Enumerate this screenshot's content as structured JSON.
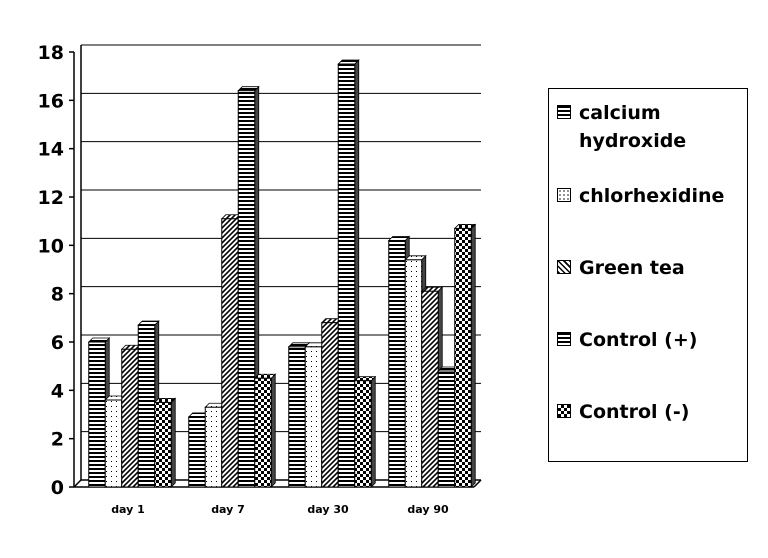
{
  "chart_data": {
    "type": "bar",
    "categories": [
      "day 1",
      "day 7",
      "day 30",
      "day 90"
    ],
    "series": [
      {
        "name": "calcium hydroxide",
        "pattern": "hstripe",
        "values": [
          6.0,
          2.9,
          5.8,
          10.2
        ]
      },
      {
        "name": "chlorhexidine",
        "pattern": "dots",
        "values": [
          3.6,
          3.3,
          5.8,
          9.4
        ]
      },
      {
        "name": "Green tea",
        "pattern": "diag",
        "values": [
          5.7,
          11.1,
          6.8,
          8.1
        ]
      },
      {
        "name": "Control (+)",
        "pattern": "hstripe",
        "values": [
          6.7,
          16.4,
          17.5,
          4.8
        ]
      },
      {
        "name": "Control (-)",
        "pattern": "check",
        "values": [
          3.5,
          4.5,
          4.4,
          10.7
        ]
      }
    ],
    "ylim": [
      0,
      18
    ],
    "yticks": [
      "0",
      "2",
      "4",
      "6",
      "8",
      "10",
      "12",
      "14",
      "16",
      "18"
    ],
    "grid": true,
    "legend_position": "right",
    "colors": {
      "ink": "#000000",
      "fill": "#ffffff"
    }
  }
}
